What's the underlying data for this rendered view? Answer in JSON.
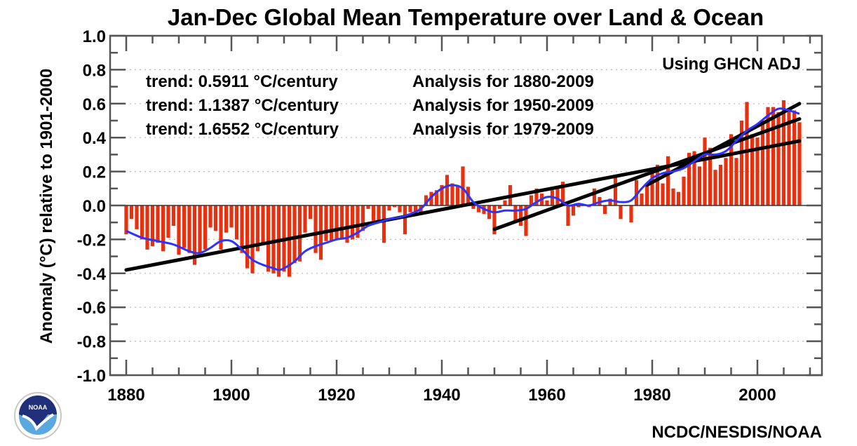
{
  "chart_data": {
    "type": "bar",
    "title": "Jan-Dec Global Mean Temperature over Land & Ocean",
    "xlabel": "",
    "ylabel": "Anomaly (°C) relative to 1901-2000",
    "xlim": [
      1877,
      2012.5
    ],
    "ylim": [
      -1.0,
      1.0
    ],
    "x_ticks": [
      1880,
      1900,
      1920,
      1940,
      1960,
      1980,
      2000
    ],
    "x_minor_step": 5,
    "y_ticks": [
      1.0,
      0.8,
      0.6,
      0.4,
      0.2,
      0.0,
      -0.2,
      -0.4,
      -0.6,
      -0.8,
      -1.0
    ],
    "y_tick_labels": [
      "1.0",
      "0.8",
      "0.6",
      "0.4",
      "0.2",
      "0.0",
      "-0.2",
      "-0.4",
      "-0.6",
      "-0.8",
      "-1.0"
    ],
    "y_minor_step": 0.1,
    "grid": true,
    "years": [
      1880,
      1881,
      1882,
      1883,
      1884,
      1885,
      1886,
      1887,
      1888,
      1889,
      1890,
      1891,
      1892,
      1893,
      1894,
      1895,
      1896,
      1897,
      1898,
      1899,
      1900,
      1901,
      1902,
      1903,
      1904,
      1905,
      1906,
      1907,
      1908,
      1909,
      1910,
      1911,
      1912,
      1913,
      1914,
      1915,
      1916,
      1917,
      1918,
      1919,
      1920,
      1921,
      1922,
      1923,
      1924,
      1925,
      1926,
      1927,
      1928,
      1929,
      1930,
      1931,
      1932,
      1933,
      1934,
      1935,
      1936,
      1937,
      1938,
      1939,
      1940,
      1941,
      1942,
      1943,
      1944,
      1945,
      1946,
      1947,
      1948,
      1949,
      1950,
      1951,
      1952,
      1953,
      1954,
      1955,
      1956,
      1957,
      1958,
      1959,
      1960,
      1961,
      1962,
      1963,
      1964,
      1965,
      1966,
      1967,
      1968,
      1969,
      1970,
      1971,
      1972,
      1973,
      1974,
      1975,
      1976,
      1977,
      1978,
      1979,
      1980,
      1981,
      1982,
      1983,
      1984,
      1985,
      1986,
      1987,
      1988,
      1989,
      1990,
      1991,
      1992,
      1993,
      1994,
      1995,
      1996,
      1997,
      1998,
      1999,
      2000,
      2001,
      2002,
      2003,
      2004,
      2005,
      2006,
      2007,
      2008
    ],
    "series": [
      {
        "name": "Annual anomaly",
        "kind": "bar",
        "color": "#e8300f",
        "values": [
          -0.17,
          -0.08,
          -0.14,
          -0.2,
          -0.26,
          -0.24,
          -0.22,
          -0.27,
          -0.19,
          -0.12,
          -0.29,
          -0.25,
          -0.28,
          -0.35,
          -0.28,
          -0.26,
          -0.13,
          -0.15,
          -0.26,
          -0.16,
          -0.13,
          -0.2,
          -0.28,
          -0.37,
          -0.4,
          -0.27,
          -0.22,
          -0.39,
          -0.4,
          -0.42,
          -0.39,
          -0.42,
          -0.34,
          -0.33,
          -0.16,
          -0.08,
          -0.28,
          -0.32,
          -0.21,
          -0.21,
          -0.2,
          -0.2,
          -0.22,
          -0.2,
          -0.19,
          -0.15,
          -0.02,
          -0.09,
          -0.09,
          -0.22,
          -0.03,
          -0.01,
          -0.04,
          -0.17,
          -0.04,
          -0.04,
          -0.04,
          0.06,
          0.08,
          0.09,
          0.12,
          0.18,
          0.13,
          0.12,
          0.23,
          0.11,
          -0.02,
          -0.04,
          -0.05,
          -0.08,
          -0.17,
          -0.02,
          0.03,
          0.12,
          -0.09,
          -0.12,
          -0.18,
          0.06,
          0.1,
          0.07,
          0.03,
          0.09,
          0.1,
          0.14,
          -0.12,
          -0.06,
          -0.01,
          0.0,
          -0.01,
          0.1,
          0.05,
          -0.05,
          0.04,
          0.17,
          -0.08,
          0.0,
          -0.1,
          0.15,
          0.07,
          0.12,
          0.19,
          0.24,
          0.13,
          0.29,
          0.1,
          0.08,
          0.17,
          0.31,
          0.32,
          0.23,
          0.4,
          0.34,
          0.21,
          0.24,
          0.28,
          0.42,
          0.28,
          0.5,
          0.61,
          0.42,
          0.4,
          0.5,
          0.58,
          0.58,
          0.55,
          0.62,
          0.56,
          0.56,
          0.49
        ]
      },
      {
        "name": "Smoothed",
        "kind": "line",
        "color": "#2a33ff",
        "x": [
          1880,
          1883,
          1886,
          1889,
          1892,
          1894,
          1896,
          1898,
          1900,
          1902,
          1904,
          1906,
          1908,
          1909,
          1910,
          1912,
          1914,
          1916,
          1918,
          1920,
          1922,
          1924,
          1926,
          1928,
          1930,
          1932,
          1934,
          1936,
          1938,
          1940,
          1942,
          1944,
          1946,
          1948,
          1950,
          1952,
          1954,
          1956,
          1958,
          1960,
          1962,
          1964,
          1966,
          1968,
          1970,
          1972,
          1974,
          1976,
          1978,
          1980,
          1982,
          1984,
          1986,
          1988,
          1990,
          1992,
          1994,
          1996,
          1998,
          2000,
          2002,
          2004,
          2006,
          2008
        ],
        "values": [
          -0.15,
          -0.19,
          -0.21,
          -0.23,
          -0.27,
          -0.28,
          -0.25,
          -0.21,
          -0.21,
          -0.26,
          -0.32,
          -0.35,
          -0.37,
          -0.38,
          -0.37,
          -0.33,
          -0.27,
          -0.24,
          -0.22,
          -0.2,
          -0.19,
          -0.16,
          -0.12,
          -0.1,
          -0.08,
          -0.07,
          -0.05,
          -0.02,
          0.05,
          0.1,
          0.12,
          0.1,
          0.02,
          -0.02,
          -0.04,
          -0.03,
          -0.03,
          -0.02,
          0.02,
          0.05,
          0.04,
          0.0,
          0.01,
          0.0,
          0.02,
          0.03,
          0.02,
          0.03,
          0.1,
          0.16,
          0.19,
          0.2,
          0.22,
          0.26,
          0.3,
          0.3,
          0.32,
          0.38,
          0.44,
          0.48,
          0.53,
          0.57,
          0.56,
          0.54
        ]
      }
    ],
    "trend_lines": [
      {
        "label": "trend:  0.5911 °C/century",
        "period": "Analysis for 1880-2009",
        "rate_per_century": 0.5911,
        "x": [
          1880,
          2008
        ],
        "y": [
          -0.38,
          0.38
        ]
      },
      {
        "label": "trend:  1.1387 °C/century",
        "period": "Analysis for 1950-2009",
        "rate_per_century": 1.1387,
        "x": [
          1950,
          2008
        ],
        "y": [
          -0.14,
          0.51
        ]
      },
      {
        "label": "trend:  1.6552 °C/century",
        "period": "Analysis for 1979-2009",
        "rate_per_century": 1.6552,
        "x": [
          1979,
          2008
        ],
        "y": [
          0.12,
          0.6
        ]
      }
    ],
    "annotations": {
      "dataset_note": "Using GHCN ADJ",
      "trend_rows": [
        {
          "trend": "trend:  0.5911 °C/century",
          "analysis": "Analysis for 1880-2009"
        },
        {
          "trend": "trend:  1.1387 °C/century",
          "analysis": "Analysis for 1950-2009"
        },
        {
          "trend": "trend:  1.6552 °C/century",
          "analysis": "Analysis for 1979-2009"
        }
      ]
    },
    "legend": "none"
  },
  "footer": {
    "credit": "NCDC/NESDIS/NOAA",
    "logo": "noaa-logo",
    "logo_text": "NOAA"
  },
  "colors": {
    "bar": "#e8300f",
    "smooth": "#2a33ff",
    "trend": "#000000",
    "logo_dark": "#1f2f7a",
    "logo_light": "#5aa8e0"
  }
}
